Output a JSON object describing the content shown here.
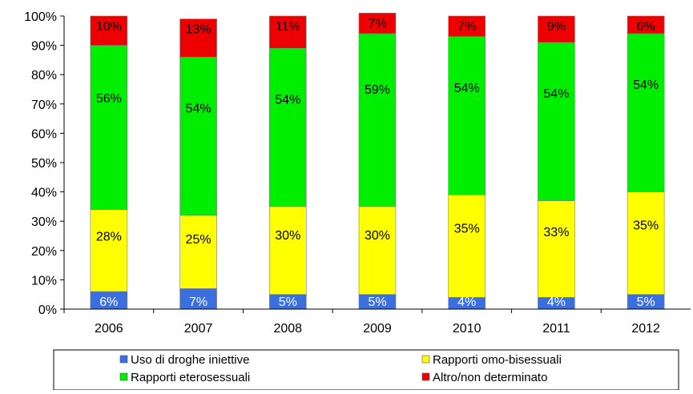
{
  "chart_data": {
    "type": "bar",
    "stacked": true,
    "categories": [
      "2006",
      "2007",
      "2008",
      "2009",
      "2010",
      "2011",
      "2012"
    ],
    "series": [
      {
        "name": "Uso di droghe iniettive",
        "color": "#3b6fe0",
        "values": [
          6,
          7,
          5,
          5,
          4,
          4,
          5
        ],
        "labels": [
          "6%",
          "7%",
          "5%",
          "5%",
          "4%",
          "4%",
          "5%"
        ]
      },
      {
        "name": "Rapporti omo-bisessuali",
        "color": "#ffff00",
        "values": [
          28,
          25,
          30,
          30,
          35,
          33,
          35
        ],
        "labels": [
          "28%",
          "25%",
          "30%",
          "30%",
          "35%",
          "33%",
          "35%"
        ]
      },
      {
        "name": "Rapporti eterosessuali",
        "color": "#00ee00",
        "values": [
          56,
          54,
          54,
          59,
          54,
          54,
          54
        ],
        "labels": [
          "56%",
          "54%",
          "54%",
          "59%",
          "54%",
          "54%",
          "54%"
        ]
      },
      {
        "name": "Altro/non determinato",
        "color": "#ee0000",
        "values": [
          10,
          13,
          11,
          7,
          7,
          9,
          6
        ],
        "labels": [
          "10%",
          "13%",
          "11%",
          "7%",
          "7%",
          "9%",
          "6%"
        ]
      }
    ],
    "ylim": [
      0,
      100
    ],
    "y_ticks": [
      "0%",
      "10%",
      "20%",
      "30%",
      "40%",
      "50%",
      "60%",
      "70%",
      "80%",
      "90%",
      "100%"
    ],
    "grid": false,
    "legend_position": "bottom"
  }
}
